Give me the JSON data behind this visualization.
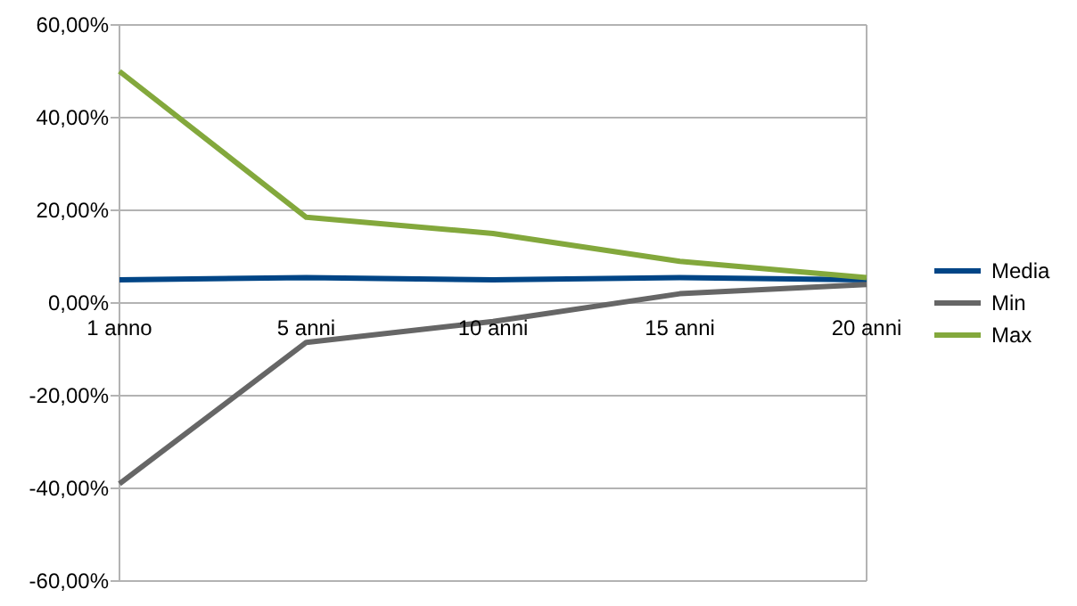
{
  "chart_data": {
    "type": "line",
    "categories": [
      "1 anno",
      "5 anni",
      "10 anni",
      "15 anni",
      "20 anni"
    ],
    "series": [
      {
        "name": "Media",
        "color": "#004586",
        "values": [
          5,
          5.5,
          5,
          5.5,
          5
        ]
      },
      {
        "name": "Min",
        "color": "#666666",
        "values": [
          -39,
          -8.5,
          -4,
          2,
          4
        ]
      },
      {
        "name": "Max",
        "color": "#83a83c",
        "values": [
          50,
          18.5,
          15,
          9,
          5.5
        ]
      }
    ],
    "ylim": [
      -60,
      60
    ],
    "yticks": [
      {
        "value": -60,
        "label": "-60,00%"
      },
      {
        "value": -40,
        "label": "-40,00%"
      },
      {
        "value": -20,
        "label": "-20,00%"
      },
      {
        "value": 0,
        "label": "0,00%"
      },
      {
        "value": 20,
        "label": "20,00%"
      },
      {
        "value": 40,
        "label": "40,00%"
      },
      {
        "value": 60,
        "label": "60,00%"
      }
    ],
    "grid": "y",
    "legend": "right",
    "marker": "none",
    "line_style": "solid"
  }
}
